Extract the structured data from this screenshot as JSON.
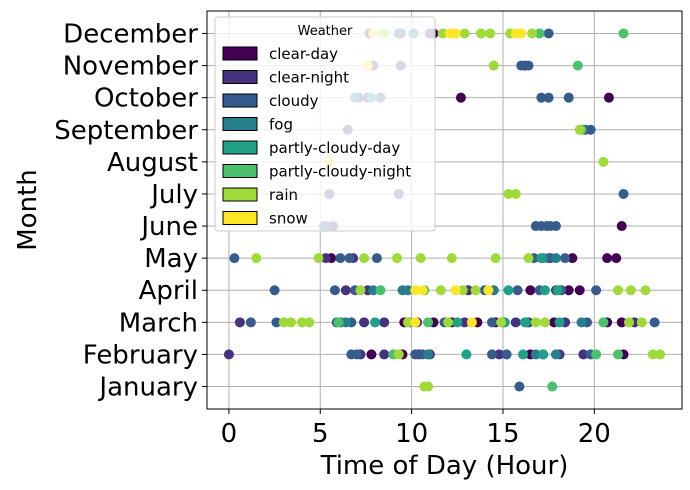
{
  "chart_data": {
    "type": "scatter",
    "title": "",
    "xlabel": "Time of Day (Hour)",
    "ylabel": "Month",
    "xlim": [
      -1.2,
      24.8
    ],
    "x_ticks": [
      0,
      5,
      10,
      15,
      20
    ],
    "y_categories": [
      "January",
      "February",
      "March",
      "April",
      "May",
      "June",
      "July",
      "August",
      "September",
      "October",
      "November",
      "December"
    ],
    "grid": true,
    "legend": {
      "title": "Weather",
      "placement": "top-left",
      "entries": [
        {
          "name": "clear-day",
          "color": "#440154"
        },
        {
          "name": "clear-night",
          "color": "#46327e"
        },
        {
          "name": "cloudy",
          "color": "#365c8d"
        },
        {
          "name": "fog",
          "color": "#277f8e"
        },
        {
          "name": "partly-cloudy-day",
          "color": "#1fa187"
        },
        {
          "name": "partly-cloudy-night",
          "color": "#4ac16d"
        },
        {
          "name": "rain",
          "color": "#a0da39"
        },
        {
          "name": "snow",
          "color": "#fde725"
        }
      ]
    },
    "series": [
      {
        "name": "clear-day",
        "points": [
          [
            "February",
            7.8
          ],
          [
            "February",
            9.5
          ],
          [
            "February",
            16.5
          ],
          [
            "February",
            21.6
          ],
          [
            "March",
            9.6
          ],
          [
            "March",
            11.2
          ],
          [
            "March",
            12.2
          ],
          [
            "March",
            13.6
          ],
          [
            "March",
            14.6
          ],
          [
            "March",
            16.4
          ],
          [
            "March",
            17.8
          ],
          [
            "March",
            20.7
          ],
          [
            "March",
            21.5
          ],
          [
            "April",
            16.5
          ],
          [
            "April",
            18.6
          ],
          [
            "April",
            19.2
          ],
          [
            "May",
            5.6
          ],
          [
            "May",
            18.8
          ],
          [
            "May",
            20.7
          ],
          [
            "May",
            21.2
          ],
          [
            "June",
            21.5
          ],
          [
            "October",
            12.7
          ],
          [
            "October",
            20.8
          ],
          [
            "December",
            11.2
          ]
        ]
      },
      {
        "name": "clear-night",
        "points": [
          [
            "February",
            0.0
          ],
          [
            "February",
            7.2
          ],
          [
            "February",
            8.5
          ],
          [
            "February",
            10.4
          ],
          [
            "February",
            11.0
          ],
          [
            "February",
            14.8
          ],
          [
            "February",
            18.1
          ],
          [
            "February",
            19.4
          ],
          [
            "March",
            0.6
          ],
          [
            "March",
            6.1
          ],
          [
            "March",
            7.4
          ],
          [
            "March",
            8.5
          ],
          [
            "March",
            10.3
          ],
          [
            "March",
            12.9
          ],
          [
            "March",
            15.7
          ],
          [
            "March",
            18.4
          ],
          [
            "March",
            22.2
          ],
          [
            "April",
            6.4
          ],
          [
            "April",
            7.6
          ],
          [
            "April",
            13.1
          ],
          [
            "April",
            17.9
          ],
          [
            "May",
            5.3
          ],
          [
            "May",
            6.8
          ],
          [
            "May",
            17.6
          ],
          [
            "June",
            5.3
          ],
          [
            "June",
            5.7
          ],
          [
            "July",
            5.5
          ],
          [
            "July",
            9.3
          ],
          [
            "September",
            6.5
          ],
          [
            "October",
            7.1
          ],
          [
            "October",
            7.6
          ],
          [
            "November",
            7.9
          ],
          [
            "November",
            9.4
          ],
          [
            "November",
            16.2
          ],
          [
            "December",
            7.7
          ],
          [
            "December",
            9.4
          ],
          [
            "December",
            11.0
          ]
        ]
      },
      {
        "name": "cloudy",
        "points": [
          [
            "January",
            15.9
          ],
          [
            "February",
            6.7
          ],
          [
            "February",
            7.0
          ],
          [
            "February",
            10.2
          ],
          [
            "February",
            10.6
          ],
          [
            "February",
            14.4
          ],
          [
            "February",
            15.2
          ],
          [
            "February",
            17.2
          ],
          [
            "February",
            19.8
          ],
          [
            "March",
            1.2
          ],
          [
            "March",
            2.6
          ],
          [
            "March",
            5.9
          ],
          [
            "March",
            6.7
          ],
          [
            "March",
            11.8
          ],
          [
            "March",
            14.4
          ],
          [
            "March",
            19.6
          ],
          [
            "March",
            23.3
          ],
          [
            "April",
            2.5
          ],
          [
            "April",
            5.8
          ],
          [
            "April",
            6.9
          ],
          [
            "April",
            14.0
          ],
          [
            "April",
            15.8
          ],
          [
            "April",
            17.0
          ],
          [
            "April",
            18.2
          ],
          [
            "April",
            20.1
          ],
          [
            "May",
            0.3
          ],
          [
            "May",
            6.1
          ],
          [
            "May",
            6.6
          ],
          [
            "May",
            8.1
          ],
          [
            "May",
            16.7
          ],
          [
            "May",
            17.5
          ],
          [
            "May",
            18.4
          ],
          [
            "June",
            5.2
          ],
          [
            "June",
            16.8
          ],
          [
            "June",
            17.1
          ],
          [
            "June",
            17.4
          ],
          [
            "June",
            17.6
          ],
          [
            "June",
            17.9
          ],
          [
            "July",
            21.6
          ],
          [
            "September",
            19.5
          ],
          [
            "September",
            19.8
          ],
          [
            "October",
            8.3
          ],
          [
            "October",
            17.1
          ],
          [
            "October",
            17.5
          ],
          [
            "October",
            18.6
          ],
          [
            "November",
            16.0
          ],
          [
            "November",
            16.4
          ],
          [
            "December",
            9.3
          ],
          [
            "December",
            17.5
          ]
        ]
      },
      {
        "name": "fog",
        "points": [
          [
            "February",
            10.9
          ],
          [
            "February",
            16.8
          ],
          [
            "February",
            17.9
          ],
          [
            "March",
            6.4
          ],
          [
            "March",
            9.9
          ],
          [
            "March",
            15.0
          ],
          [
            "March",
            16.3
          ],
          [
            "March",
            19.3
          ],
          [
            "April",
            7.9
          ],
          [
            "April",
            9.5
          ],
          [
            "April",
            9.8
          ],
          [
            "April",
            14.5
          ],
          [
            "May",
            17.2
          ],
          [
            "May",
            17.9
          ],
          [
            "October",
            6.9
          ],
          [
            "December",
            10.1
          ]
        ]
      },
      {
        "name": "partly-cloudy-day",
        "points": [
          [
            "February",
            13.0
          ],
          [
            "February",
            16.1
          ],
          [
            "February",
            17.2
          ],
          [
            "March",
            8.0
          ],
          [
            "March",
            12.5
          ],
          [
            "March",
            15.1
          ],
          [
            "March",
            16.2
          ],
          [
            "March",
            18.1
          ],
          [
            "April",
            15.3
          ],
          [
            "April",
            17.3
          ],
          [
            "April",
            18.0
          ],
          [
            "May",
            17.1
          ],
          [
            "October",
            7.8
          ]
        ]
      },
      {
        "name": "partly-cloudy-night",
        "points": [
          [
            "January",
            17.7
          ],
          [
            "February",
            9.0
          ],
          [
            "February",
            20.1
          ],
          [
            "February",
            21.3
          ],
          [
            "March",
            6.0
          ],
          [
            "March",
            10.9
          ],
          [
            "March",
            20.5
          ],
          [
            "April",
            8.3
          ],
          [
            "April",
            10.7
          ],
          [
            "September",
            19.3
          ],
          [
            "November",
            19.1
          ],
          [
            "December",
            17.0
          ],
          [
            "December",
            21.6
          ]
        ]
      },
      {
        "name": "rain",
        "points": [
          [
            "January",
            10.7
          ],
          [
            "January",
            10.9
          ],
          [
            "February",
            9.3
          ],
          [
            "February",
            23.2
          ],
          [
            "February",
            23.6
          ],
          [
            "March",
            3.0
          ],
          [
            "March",
            3.4
          ],
          [
            "March",
            4.0
          ],
          [
            "March",
            4.4
          ],
          [
            "March",
            9.8
          ],
          [
            "March",
            12.0
          ],
          [
            "March",
            14.9
          ],
          [
            "March",
            16.8
          ],
          [
            "March",
            17.3
          ],
          [
            "March",
            21.9
          ],
          [
            "March",
            22.6
          ],
          [
            "April",
            7.2
          ],
          [
            "April",
            11.6
          ],
          [
            "April",
            12.8
          ],
          [
            "April",
            13.5
          ],
          [
            "April",
            21.3
          ],
          [
            "April",
            22.0
          ],
          [
            "April",
            22.8
          ],
          [
            "May",
            1.5
          ],
          [
            "May",
            4.9
          ],
          [
            "May",
            7.4
          ],
          [
            "May",
            9.2
          ],
          [
            "May",
            10.5
          ],
          [
            "May",
            12.2
          ],
          [
            "May",
            14.6
          ],
          [
            "May",
            16.4
          ],
          [
            "July",
            15.3
          ],
          [
            "July",
            15.7
          ],
          [
            "August",
            20.5
          ],
          [
            "September",
            19.2
          ],
          [
            "November",
            14.5
          ],
          [
            "December",
            8.5
          ],
          [
            "December",
            11.7
          ],
          [
            "December",
            12.9
          ],
          [
            "December",
            13.8
          ],
          [
            "December",
            14.3
          ],
          [
            "December",
            15.4
          ],
          [
            "December",
            16.6
          ]
        ]
      },
      {
        "name": "snow",
        "points": [
          [
            "March",
            10.2
          ],
          [
            "March",
            13.3
          ],
          [
            "April",
            10.2
          ],
          [
            "April",
            10.6
          ],
          [
            "April",
            12.4
          ],
          [
            "April",
            14.2
          ],
          [
            "August",
            5.5
          ],
          [
            "November",
            7.6
          ],
          [
            "December",
            7.9
          ],
          [
            "December",
            12.1
          ],
          [
            "December",
            12.4
          ],
          [
            "December",
            15.7
          ],
          [
            "December",
            16.0
          ]
        ]
      }
    ]
  }
}
